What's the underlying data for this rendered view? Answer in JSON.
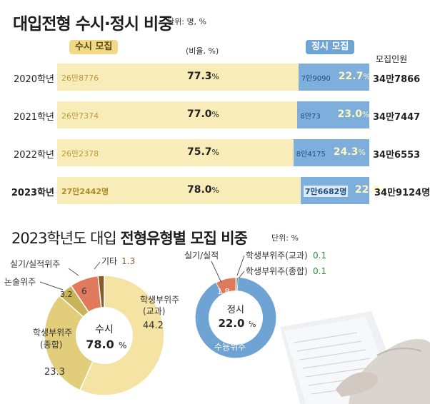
{
  "header": {
    "title": "대입전형 수시·정시 비중",
    "unit": "단위: 명, %"
  },
  "legend": {
    "susi": "수시 모집",
    "jeongsi": "정시 모집",
    "ratio": "(비율, %)",
    "total": "모집인원"
  },
  "colors": {
    "susi_bar": "#f8ecb8",
    "jeongsi_bar": "#7eaedb",
    "pie_big": "#f5e3a3",
    "pie_mid": "#e2cd7a",
    "pie_small": "#c9b35a",
    "pie_red": "#e07a5c",
    "pie_dark": "#8a5a2b",
    "donut_blue": "#6fa3d3"
  },
  "chart_data": [
    {
      "type": "bar",
      "stacked": true,
      "orientation": "horizontal",
      "categories": [
        "2020학년",
        "2021학년",
        "2022학년",
        "2023학년"
      ],
      "series": [
        {
          "name": "수시 모집",
          "values": [
            77.3,
            77.0,
            75.7,
            78.0
          ],
          "counts": [
            "26만8776",
            "26만7374",
            "26만2378",
            "27만2442명"
          ]
        },
        {
          "name": "정시 모집",
          "values": [
            22.7,
            23.0,
            24.3,
            22.0
          ],
          "counts": [
            "7만9090",
            "8만73",
            "8만4175",
            "7만6682명"
          ]
        }
      ],
      "totals": [
        "34만7866",
        "34만7447",
        "34만6553",
        "34만9124명"
      ],
      "ylabel": "(비율, %)",
      "xlim": [
        0,
        100
      ]
    },
    {
      "type": "pie",
      "title": "2023학년도 대입 전형유형별 모집 비중",
      "title_parts": {
        "plain": "2023학년도 대입 ",
        "bold": "전형유형별 모집 비중",
        "unit": "단위: %"
      },
      "center_label": "수시",
      "center_value": "78.0",
      "center_unit": "%",
      "slices": [
        {
          "label": "학생부위주",
          "sublabel": "(교과)",
          "value": 44.2
        },
        {
          "label": "학생부위주",
          "sublabel": "(종합)",
          "value": 23.3
        },
        {
          "label": "논술위주",
          "value": 3.2
        },
        {
          "label": "실기/실적위주",
          "value": 6.0
        },
        {
          "label": "기타",
          "value": 1.3
        }
      ]
    },
    {
      "type": "pie",
      "center_label": "정시",
      "center_value": "22.0",
      "center_unit": "%",
      "slices": [
        {
          "label": "수능위주",
          "value": 20.0
        },
        {
          "label": "실기/실적",
          "value": 1.8
        },
        {
          "label": "학생부위주(교과)",
          "value": 0.1
        },
        {
          "label": "학생부위주(종합)",
          "value": 0.1
        }
      ]
    }
  ]
}
